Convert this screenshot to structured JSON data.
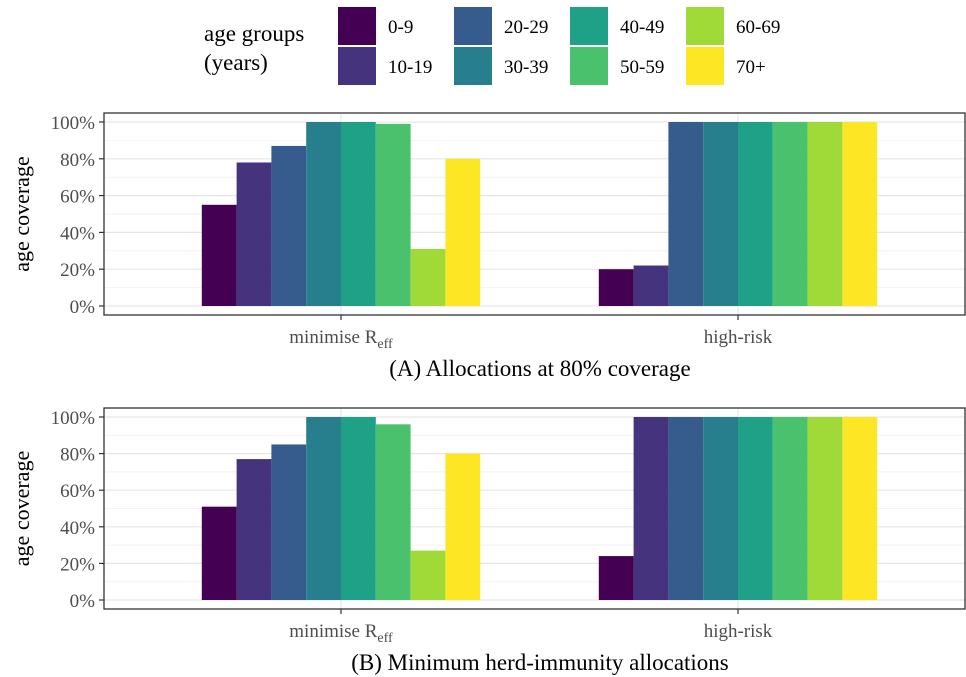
{
  "legend": {
    "title_line1": "age groups",
    "title_line2": "(years)"
  },
  "chart_data": [
    {
      "type": "bar",
      "title": "(A) Allocations at 80% coverage",
      "ylabel": "age coverage",
      "xlabel": "",
      "ylim": [
        0,
        100
      ],
      "yticks": [
        "0%",
        "20%",
        "40%",
        "60%",
        "80%",
        "100%"
      ],
      "grid": true,
      "legend_position": "top",
      "categories": [
        "minimise R_eff",
        "high-risk"
      ],
      "series": [
        {
          "name": "0-9",
          "color": "#440154",
          "values": [
            55,
            20
          ]
        },
        {
          "name": "10-19",
          "color": "#46337e",
          "values": [
            78,
            22
          ]
        },
        {
          "name": "20-29",
          "color": "#365c8d",
          "values": [
            87,
            100
          ]
        },
        {
          "name": "30-39",
          "color": "#277f8e",
          "values": [
            100,
            100
          ]
        },
        {
          "name": "40-49",
          "color": "#1fa187",
          "values": [
            100,
            100
          ]
        },
        {
          "name": "50-59",
          "color": "#4ac16d",
          "values": [
            99,
            100
          ]
        },
        {
          "name": "60-69",
          "color": "#a0da39",
          "values": [
            31,
            100
          ]
        },
        {
          "name": "70+",
          "color": "#fde725",
          "values": [
            80,
            100
          ]
        }
      ]
    },
    {
      "type": "bar",
      "title": "(B) Minimum herd-immunity allocations",
      "ylabel": "age coverage",
      "xlabel": "",
      "ylim": [
        0,
        100
      ],
      "yticks": [
        "0%",
        "20%",
        "40%",
        "60%",
        "80%",
        "100%"
      ],
      "grid": true,
      "legend_position": "top",
      "categories": [
        "minimise R_eff",
        "high-risk"
      ],
      "series": [
        {
          "name": "0-9",
          "color": "#440154",
          "values": [
            51,
            24
          ]
        },
        {
          "name": "10-19",
          "color": "#46337e",
          "values": [
            77,
            100
          ]
        },
        {
          "name": "20-29",
          "color": "#365c8d",
          "values": [
            85,
            100
          ]
        },
        {
          "name": "30-39",
          "color": "#277f8e",
          "values": [
            100,
            100
          ]
        },
        {
          "name": "40-49",
          "color": "#1fa187",
          "values": [
            100,
            100
          ]
        },
        {
          "name": "50-59",
          "color": "#4ac16d",
          "values": [
            96,
            100
          ]
        },
        {
          "name": "60-69",
          "color": "#a0da39",
          "values": [
            27,
            100
          ]
        },
        {
          "name": "70+",
          "color": "#fde725",
          "values": [
            80,
            100
          ]
        }
      ]
    }
  ]
}
